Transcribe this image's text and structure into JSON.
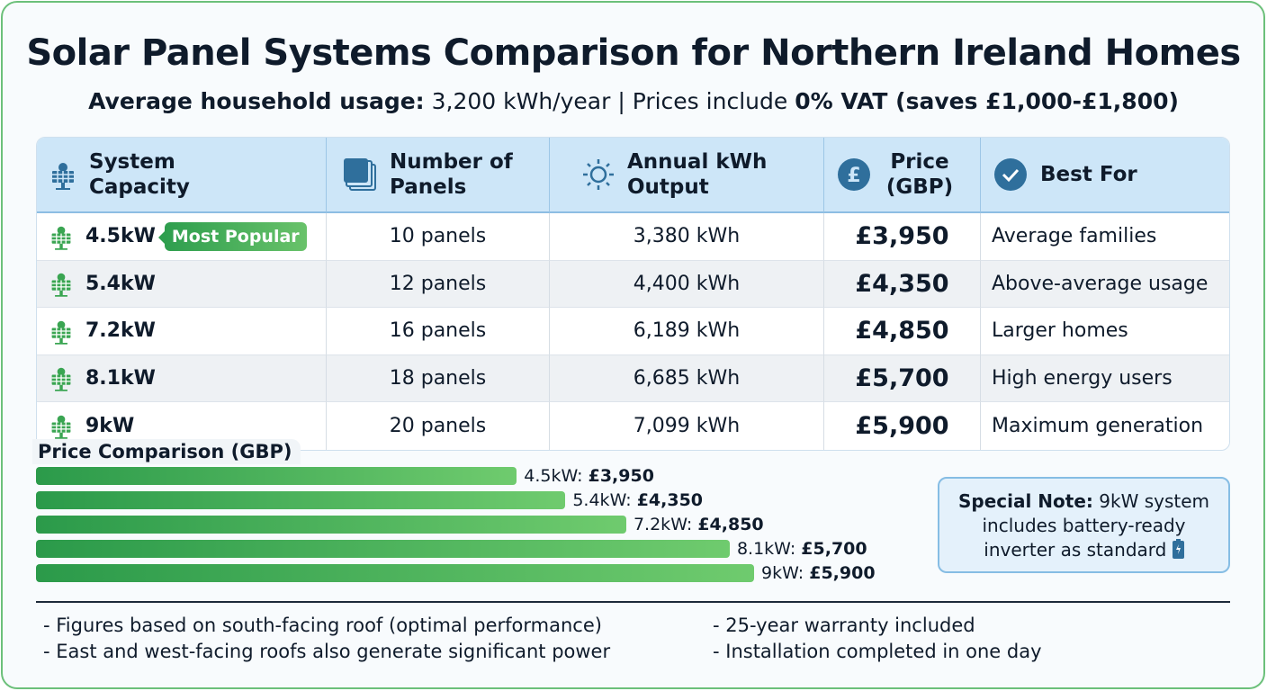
{
  "title": "Solar Panel Systems Comparison for Northern Ireland Homes",
  "subtitle": {
    "label": "Average household usage:",
    "usage": "3,200 kWh/year | Prices include",
    "vat": "0% VAT (saves £1,000-£1,800)"
  },
  "table": {
    "headers": [
      {
        "label": "System Capacity",
        "icon": "solar-panel-icon"
      },
      {
        "label": "Number of Panels",
        "icon": "stacked-panels-icon"
      },
      {
        "label": "Annual kWh Output",
        "icon": "sun-icon"
      },
      {
        "label": "Price (GBP)",
        "icon": "pound-icon"
      },
      {
        "label": "Best For",
        "icon": "check-circle-icon"
      }
    ],
    "rows": [
      {
        "capacity": "4.5kW",
        "badge": "Most Popular",
        "panels": "10 panels",
        "output": "3,380 kWh",
        "price": "£3,950",
        "best": "Average families"
      },
      {
        "capacity": "5.4kW",
        "panels": "12 panels",
        "output": "4,400 kWh",
        "price": "£4,350",
        "best": "Above-average usage"
      },
      {
        "capacity": "7.2kW",
        "panels": "16 panels",
        "output": "6,189 kWh",
        "price": "£4,850",
        "best": "Larger homes"
      },
      {
        "capacity": "8.1kW",
        "panels": "18 panels",
        "output": "6,685 kWh",
        "price": "£5,700",
        "best": "High energy users"
      },
      {
        "capacity": "9kW",
        "panels": "20 panels",
        "output": "7,099 kWh",
        "price": "£5,900",
        "best": "Maximum generation"
      }
    ]
  },
  "chart_data": {
    "type": "bar",
    "orientation": "horizontal",
    "title": "Price Comparison (GBP)",
    "categories": [
      "4.5kW",
      "5.4kW",
      "7.2kW",
      "8.1kW",
      "9kW"
    ],
    "values": [
      3950,
      4350,
      4850,
      5700,
      5900
    ],
    "value_labels": [
      "£3,950",
      "£4,350",
      "£4,850",
      "£5,700",
      "£5,900"
    ],
    "colors": [
      "#2b9a4a",
      "#6fcb6e"
    ]
  },
  "note": {
    "label": "Special Note:",
    "text1": "9kW system",
    "text2": "includes battery-ready",
    "text3": "inverter as standard",
    "icon": "battery-icon"
  },
  "footnotes": [
    "- Figures based on south-facing roof (optimal performance)",
    "- East and west-facing roofs also generate significant power",
    "- 25-year warranty included",
    "- Installation completed in one day"
  ]
}
